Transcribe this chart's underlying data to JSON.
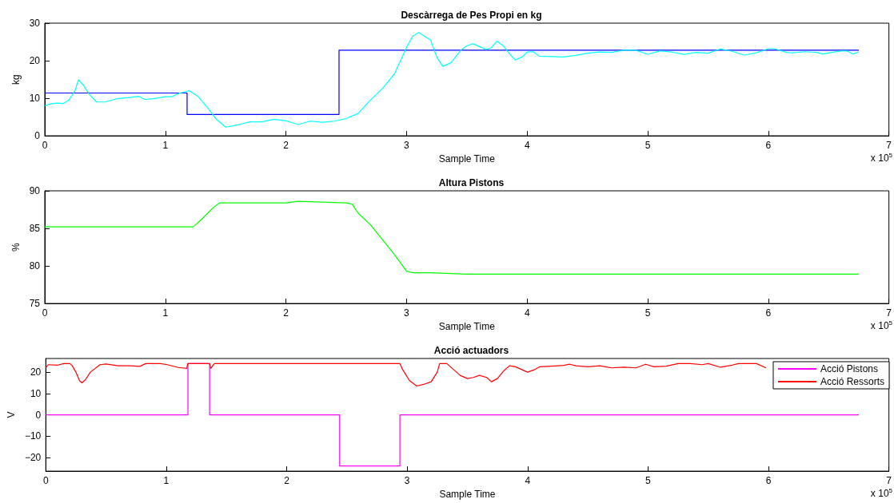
{
  "chart_data": [
    {
      "type": "line",
      "title": "Descàrrega de Pes Propi en kg",
      "xlabel": "Sample Time",
      "ylabel": "kg",
      "xlim": [
        0,
        7
      ],
      "xticks": [
        0,
        1,
        2,
        3,
        4,
        5,
        6,
        7
      ],
      "ylim": [
        0,
        30
      ],
      "yticks": [
        0,
        10,
        20,
        30
      ],
      "marker": "none",
      "annotations": [
        "x 10$^{5}$"
      ],
      "series": [
        {
          "type": "step",
          "color": "#0000ff",
          "x": [
            0,
            1.18,
            2.44,
            6.75
          ],
          "values": [
            11.4,
            5.7,
            22.8,
            22.8
          ]
        },
        {
          "type": "line",
          "color": "#00ffff",
          "x": [
            0,
            0.05,
            0.1,
            0.15,
            0.2,
            0.25,
            0.28,
            0.32,
            0.37,
            0.43,
            0.5,
            0.6,
            0.7,
            0.78,
            0.83,
            0.9,
            1.0,
            1.05,
            1.12,
            1.2,
            1.27,
            1.35,
            1.42,
            1.5,
            1.6,
            1.7,
            1.8,
            1.9,
            2.0,
            2.1,
            2.2,
            2.3,
            2.4,
            2.5,
            2.6,
            2.7,
            2.8,
            2.9,
            2.95,
            3.0,
            3.05,
            3.1,
            3.2,
            3.25,
            3.3,
            3.37,
            3.45,
            3.5,
            3.55,
            3.6,
            3.66,
            3.7,
            3.75,
            3.8,
            3.85,
            3.9,
            3.96,
            4.0,
            4.05,
            4.1,
            4.2,
            4.3,
            4.4,
            4.5,
            4.6,
            4.7,
            4.8,
            4.9,
            5.0,
            5.1,
            5.2,
            5.3,
            5.4,
            5.5,
            5.6,
            5.7,
            5.8,
            5.9,
            6.0,
            6.05,
            6.15,
            6.2,
            6.3,
            6.4,
            6.45,
            6.6,
            6.65,
            6.7,
            6.75
          ],
          "values": [
            8.0,
            8.5,
            8.7,
            8.6,
            9.5,
            12,
            14.9,
            13.5,
            11,
            9.0,
            9.0,
            9.9,
            10.2,
            10.5,
            9.7,
            9.9,
            10.4,
            10.4,
            11.4,
            12.0,
            10.5,
            7.5,
            4.5,
            2.3,
            2.9,
            3.7,
            3.7,
            4.4,
            4.0,
            3.0,
            3.9,
            3.6,
            3.9,
            4.6,
            6.0,
            9.5,
            12.6,
            16.5,
            20,
            23.5,
            26.5,
            27.5,
            25.5,
            21,
            18.5,
            19.5,
            22.8,
            24,
            24.5,
            23.8,
            23,
            23.4,
            25.2,
            24,
            22,
            20.2,
            21,
            22.3,
            22.4,
            21.2,
            21.1,
            21.0,
            21.4,
            22.0,
            22.3,
            22.2,
            22.8,
            22.8,
            21.7,
            22.6,
            22.3,
            21.7,
            22.2,
            22.0,
            23.1,
            22.5,
            21.5,
            22.1,
            23.2,
            23.2,
            22.2,
            22.1,
            22.4,
            22.2,
            21.8,
            22.6,
            22.6,
            21.8,
            22.3
          ]
        }
      ]
    },
    {
      "type": "line",
      "title": "Altura Pistons",
      "xlabel": "Sample Time",
      "ylabel": "%",
      "xlim": [
        0,
        7
      ],
      "xticks": [
        0,
        1,
        2,
        3,
        4,
        5,
        6,
        7
      ],
      "ylim": [
        75,
        90
      ],
      "yticks": [
        75,
        80,
        85,
        90
      ],
      "marker": "none",
      "annotations": [
        "x 10$^{5}$"
      ],
      "series": [
        {
          "type": "line",
          "color": "#00ff00",
          "x": [
            0,
            1.23,
            1.3,
            1.4,
            1.45,
            1.5,
            2.0,
            2.1,
            2.5,
            2.55,
            2.6,
            2.7,
            2.8,
            2.9,
            3.0,
            3.05,
            3.2,
            3.5,
            4.0,
            5.0,
            6.0,
            6.75
          ],
          "values": [
            85.2,
            85.2,
            86.2,
            87.8,
            88.4,
            88.4,
            88.4,
            88.6,
            88.4,
            88.2,
            87,
            85.5,
            83.5,
            81.5,
            79.3,
            79.1,
            79.1,
            78.9,
            78.9,
            78.9,
            78.9,
            78.9
          ]
        }
      ]
    },
    {
      "type": "line",
      "title": "Acció actuadors",
      "xlabel": "Sample Time",
      "ylabel": "V",
      "xlim": [
        0,
        7
      ],
      "xticks": [
        0,
        1,
        2,
        3,
        4,
        5,
        6,
        7
      ],
      "ylim": [
        -26.4,
        26.4
      ],
      "yticks": [
        -20,
        -10,
        0,
        10,
        20
      ],
      "marker": "none",
      "legend": "top right",
      "annotations": [
        "x 10$^{5}$"
      ],
      "series": [
        {
          "type": "step",
          "name": "Acció Pistons",
          "color": "#ff00ff",
          "x": [
            0,
            1.18,
            1.36,
            2.44,
            2.94,
            6.75
          ],
          "values": [
            0,
            24,
            0,
            -24,
            0,
            0
          ]
        },
        {
          "type": "line",
          "name": "Acció Ressorts",
          "color": "#ff0000",
          "x": [
            0,
            0.02,
            0.1,
            0.15,
            0.2,
            0.22,
            0.25,
            0.28,
            0.3,
            0.33,
            0.37,
            0.45,
            0.5,
            0.6,
            0.7,
            0.78,
            0.83,
            0.95,
            1.0,
            1.1,
            1.17,
            1.18,
            1.36,
            1.37,
            1.4,
            2.94,
            2.96,
            3.02,
            3.08,
            3.15,
            3.2,
            3.25,
            3.27,
            3.33,
            3.38,
            3.44,
            3.5,
            3.55,
            3.6,
            3.66,
            3.7,
            3.75,
            3.8,
            3.85,
            3.9,
            4.0,
            4.05,
            4.1,
            4.2,
            4.3,
            4.35,
            4.4,
            4.5,
            4.6,
            4.7,
            4.8,
            4.9,
            4.98,
            5.05,
            5.15,
            5.25,
            5.35,
            5.45,
            5.5,
            5.6,
            5.7,
            5.75,
            5.9,
            5.98
          ],
          "values": [
            22,
            23.5,
            23.3,
            24,
            24,
            23,
            20,
            16,
            15,
            16.5,
            20,
            23.5,
            23.8,
            23,
            23,
            22.7,
            24,
            24,
            23.6,
            22.2,
            21.8,
            24,
            24,
            21.8,
            24,
            24,
            21.5,
            16,
            13.5,
            14.5,
            15.5,
            20,
            24,
            24,
            21.5,
            18.5,
            17,
            17.5,
            18.5,
            17.5,
            15.5,
            17,
            20.5,
            23,
            22.5,
            20,
            21,
            22.5,
            22.8,
            23.2,
            23.7,
            23,
            22.5,
            23,
            22,
            22.3,
            22,
            23.7,
            22.5,
            22.8,
            24,
            24,
            23.5,
            24,
            22.3,
            23.3,
            24,
            24,
            22
          ]
        }
      ]
    }
  ]
}
